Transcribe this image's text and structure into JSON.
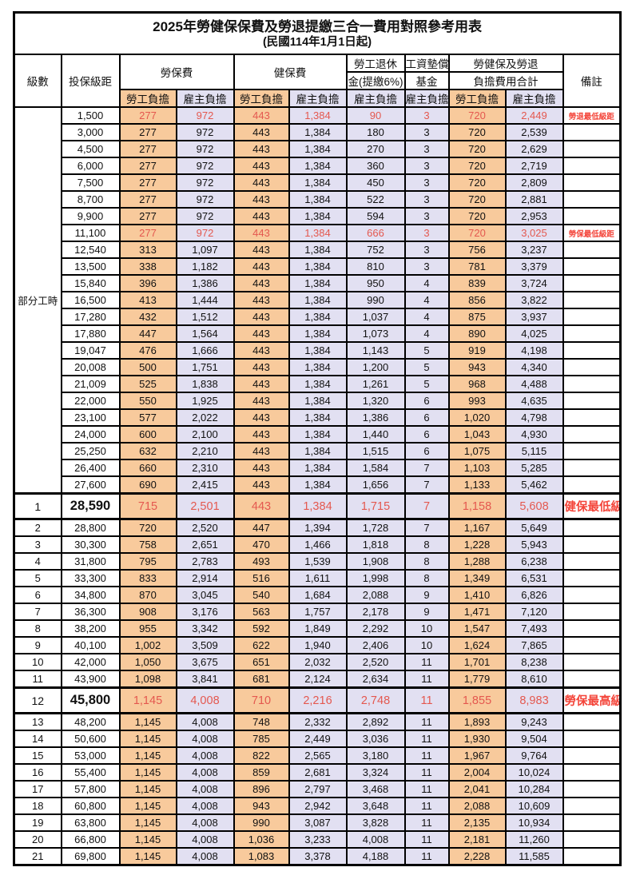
{
  "title": "2025年勞健保保費及勞退提繳三合一費用對照參考用表",
  "subtitle": "(民國114年1月1日起)",
  "header": {
    "level": "級數",
    "bracket": "投保級距",
    "labor_fee": "勞保費",
    "health_fee": "健保費",
    "pension_line1": "勞工退休",
    "pension_line2": "金(提繳6%)",
    "wage_fund_line1": "工資墊償",
    "wage_fund_line2": "基金",
    "total_line1": "勞健保及勞退",
    "total_line2": "負擔費用合計",
    "remark": "備註",
    "employee_share": "勞工負擔",
    "employer_share": "雇主負擔"
  },
  "part_time_label": "部分工時",
  "part_time_span": 23,
  "colors": {
    "employee_bg": "#F8CA9C",
    "employer_bg": "#E2E0F2",
    "highlight_red": "#E4584F",
    "note_red": "#F4453A"
  },
  "rows": [
    {
      "level": "",
      "bracket": "1,500",
      "values": [
        "277",
        "972",
        "443",
        "1,384",
        "90",
        "3",
        "720",
        "2,449"
      ],
      "note": "勞退最低級距",
      "highlight": true,
      "big": false
    },
    {
      "level": "",
      "bracket": "3,000",
      "values": [
        "277",
        "972",
        "443",
        "1,384",
        "180",
        "3",
        "720",
        "2,539"
      ],
      "note": "",
      "highlight": false,
      "big": false
    },
    {
      "level": "",
      "bracket": "4,500",
      "values": [
        "277",
        "972",
        "443",
        "1,384",
        "270",
        "3",
        "720",
        "2,629"
      ],
      "note": "",
      "highlight": false,
      "big": false
    },
    {
      "level": "",
      "bracket": "6,000",
      "values": [
        "277",
        "972",
        "443",
        "1,384",
        "360",
        "3",
        "720",
        "2,719"
      ],
      "note": "",
      "highlight": false,
      "big": false
    },
    {
      "level": "",
      "bracket": "7,500",
      "values": [
        "277",
        "972",
        "443",
        "1,384",
        "450",
        "3",
        "720",
        "2,809"
      ],
      "note": "",
      "highlight": false,
      "big": false
    },
    {
      "level": "",
      "bracket": "8,700",
      "values": [
        "277",
        "972",
        "443",
        "1,384",
        "522",
        "3",
        "720",
        "2,881"
      ],
      "note": "",
      "highlight": false,
      "big": false
    },
    {
      "level": "",
      "bracket": "9,900",
      "values": [
        "277",
        "972",
        "443",
        "1,384",
        "594",
        "3",
        "720",
        "2,953"
      ],
      "note": "",
      "highlight": false,
      "big": false
    },
    {
      "level": "",
      "bracket": "11,100",
      "values": [
        "277",
        "972",
        "443",
        "1,384",
        "666",
        "3",
        "720",
        "3,025"
      ],
      "note": "勞保最低級距",
      "highlight": true,
      "big": false
    },
    {
      "level": "",
      "bracket": "12,540",
      "values": [
        "313",
        "1,097",
        "443",
        "1,384",
        "752",
        "3",
        "756",
        "3,237"
      ],
      "note": "",
      "highlight": false,
      "big": false
    },
    {
      "level": "",
      "bracket": "13,500",
      "values": [
        "338",
        "1,182",
        "443",
        "1,384",
        "810",
        "3",
        "781",
        "3,379"
      ],
      "note": "",
      "highlight": false,
      "big": false
    },
    {
      "level": "",
      "bracket": "15,840",
      "values": [
        "396",
        "1,386",
        "443",
        "1,384",
        "950",
        "4",
        "839",
        "3,724"
      ],
      "note": "",
      "highlight": false,
      "big": false
    },
    {
      "level": "",
      "bracket": "16,500",
      "values": [
        "413",
        "1,444",
        "443",
        "1,384",
        "990",
        "4",
        "856",
        "3,822"
      ],
      "note": "",
      "highlight": false,
      "big": false
    },
    {
      "level": "",
      "bracket": "17,280",
      "values": [
        "432",
        "1,512",
        "443",
        "1,384",
        "1,037",
        "4",
        "875",
        "3,937"
      ],
      "note": "",
      "highlight": false,
      "big": false
    },
    {
      "level": "",
      "bracket": "17,880",
      "values": [
        "447",
        "1,564",
        "443",
        "1,384",
        "1,073",
        "4",
        "890",
        "4,025"
      ],
      "note": "",
      "highlight": false,
      "big": false
    },
    {
      "level": "",
      "bracket": "19,047",
      "values": [
        "476",
        "1,666",
        "443",
        "1,384",
        "1,143",
        "5",
        "919",
        "4,198"
      ],
      "note": "",
      "highlight": false,
      "big": false
    },
    {
      "level": "",
      "bracket": "20,008",
      "values": [
        "500",
        "1,751",
        "443",
        "1,384",
        "1,200",
        "5",
        "943",
        "4,340"
      ],
      "note": "",
      "highlight": false,
      "big": false
    },
    {
      "level": "",
      "bracket": "21,009",
      "values": [
        "525",
        "1,838",
        "443",
        "1,384",
        "1,261",
        "5",
        "968",
        "4,488"
      ],
      "note": "",
      "highlight": false,
      "big": false
    },
    {
      "level": "",
      "bracket": "22,000",
      "values": [
        "550",
        "1,925",
        "443",
        "1,384",
        "1,320",
        "6",
        "993",
        "4,635"
      ],
      "note": "",
      "highlight": false,
      "big": false
    },
    {
      "level": "",
      "bracket": "23,100",
      "values": [
        "577",
        "2,022",
        "443",
        "1,384",
        "1,386",
        "6",
        "1,020",
        "4,798"
      ],
      "note": "",
      "highlight": false,
      "big": false
    },
    {
      "level": "",
      "bracket": "24,000",
      "values": [
        "600",
        "2,100",
        "443",
        "1,384",
        "1,440",
        "6",
        "1,043",
        "4,930"
      ],
      "note": "",
      "highlight": false,
      "big": false
    },
    {
      "level": "",
      "bracket": "25,250",
      "values": [
        "632",
        "2,210",
        "443",
        "1,384",
        "1,515",
        "6",
        "1,075",
        "5,115"
      ],
      "note": "",
      "highlight": false,
      "big": false
    },
    {
      "level": "",
      "bracket": "26,400",
      "values": [
        "660",
        "2,310",
        "443",
        "1,384",
        "1,584",
        "7",
        "1,103",
        "5,285"
      ],
      "note": "",
      "highlight": false,
      "big": false
    },
    {
      "level": "",
      "bracket": "27,600",
      "values": [
        "690",
        "2,415",
        "443",
        "1,384",
        "1,656",
        "7",
        "1,133",
        "5,462"
      ],
      "note": "",
      "highlight": false,
      "big": false
    },
    {
      "level": "1",
      "bracket": "28,590",
      "values": [
        "715",
        "2,501",
        "443",
        "1,384",
        "1,715",
        "7",
        "1,158",
        "5,608"
      ],
      "note": "健保最低級距",
      "highlight": true,
      "big": true
    },
    {
      "level": "2",
      "bracket": "28,800",
      "values": [
        "720",
        "2,520",
        "447",
        "1,394",
        "1,728",
        "7",
        "1,167",
        "5,649"
      ],
      "note": "",
      "highlight": false,
      "big": false
    },
    {
      "level": "3",
      "bracket": "30,300",
      "values": [
        "758",
        "2,651",
        "470",
        "1,466",
        "1,818",
        "8",
        "1,228",
        "5,943"
      ],
      "note": "",
      "highlight": false,
      "big": false
    },
    {
      "level": "4",
      "bracket": "31,800",
      "values": [
        "795",
        "2,783",
        "493",
        "1,539",
        "1,908",
        "8",
        "1,288",
        "6,238"
      ],
      "note": "",
      "highlight": false,
      "big": false
    },
    {
      "level": "5",
      "bracket": "33,300",
      "values": [
        "833",
        "2,914",
        "516",
        "1,611",
        "1,998",
        "8",
        "1,349",
        "6,531"
      ],
      "note": "",
      "highlight": false,
      "big": false
    },
    {
      "level": "6",
      "bracket": "34,800",
      "values": [
        "870",
        "3,045",
        "540",
        "1,684",
        "2,088",
        "9",
        "1,410",
        "6,826"
      ],
      "note": "",
      "highlight": false,
      "big": false
    },
    {
      "level": "7",
      "bracket": "36,300",
      "values": [
        "908",
        "3,176",
        "563",
        "1,757",
        "2,178",
        "9",
        "1,471",
        "7,120"
      ],
      "note": "",
      "highlight": false,
      "big": false
    },
    {
      "level": "8",
      "bracket": "38,200",
      "values": [
        "955",
        "3,342",
        "592",
        "1,849",
        "2,292",
        "10",
        "1,547",
        "7,493"
      ],
      "note": "",
      "highlight": false,
      "big": false
    },
    {
      "level": "9",
      "bracket": "40,100",
      "values": [
        "1,002",
        "3,509",
        "622",
        "1,940",
        "2,406",
        "10",
        "1,624",
        "7,865"
      ],
      "note": "",
      "highlight": false,
      "big": false
    },
    {
      "level": "10",
      "bracket": "42,000",
      "values": [
        "1,050",
        "3,675",
        "651",
        "2,032",
        "2,520",
        "11",
        "1,701",
        "8,238"
      ],
      "note": "",
      "highlight": false,
      "big": false
    },
    {
      "level": "11",
      "bracket": "43,900",
      "values": [
        "1,098",
        "3,841",
        "681",
        "2,124",
        "2,634",
        "11",
        "1,779",
        "8,610"
      ],
      "note": "",
      "highlight": false,
      "big": false
    },
    {
      "level": "12",
      "bracket": "45,800",
      "values": [
        "1,145",
        "4,008",
        "710",
        "2,216",
        "2,748",
        "11",
        "1,855",
        "8,983"
      ],
      "note": "勞保最高級距",
      "highlight": true,
      "big": true
    },
    {
      "level": "13",
      "bracket": "48,200",
      "values": [
        "1,145",
        "4,008",
        "748",
        "2,332",
        "2,892",
        "11",
        "1,893",
        "9,243"
      ],
      "note": "",
      "highlight": false,
      "big": false
    },
    {
      "level": "14",
      "bracket": "50,600",
      "values": [
        "1,145",
        "4,008",
        "785",
        "2,449",
        "3,036",
        "11",
        "1,930",
        "9,504"
      ],
      "note": "",
      "highlight": false,
      "big": false
    },
    {
      "level": "15",
      "bracket": "53,000",
      "values": [
        "1,145",
        "4,008",
        "822",
        "2,565",
        "3,180",
        "11",
        "1,967",
        "9,764"
      ],
      "note": "",
      "highlight": false,
      "big": false
    },
    {
      "level": "16",
      "bracket": "55,400",
      "values": [
        "1,145",
        "4,008",
        "859",
        "2,681",
        "3,324",
        "11",
        "2,004",
        "10,024"
      ],
      "note": "",
      "highlight": false,
      "big": false
    },
    {
      "level": "17",
      "bracket": "57,800",
      "values": [
        "1,145",
        "4,008",
        "896",
        "2,797",
        "3,468",
        "11",
        "2,041",
        "10,284"
      ],
      "note": "",
      "highlight": false,
      "big": false
    },
    {
      "level": "18",
      "bracket": "60,800",
      "values": [
        "1,145",
        "4,008",
        "943",
        "2,942",
        "3,648",
        "11",
        "2,088",
        "10,609"
      ],
      "note": "",
      "highlight": false,
      "big": false
    },
    {
      "level": "19",
      "bracket": "63,800",
      "values": [
        "1,145",
        "4,008",
        "990",
        "3,087",
        "3,828",
        "11",
        "2,135",
        "10,934"
      ],
      "note": "",
      "highlight": false,
      "big": false
    },
    {
      "level": "20",
      "bracket": "66,800",
      "values": [
        "1,145",
        "4,008",
        "1,036",
        "3,233",
        "4,008",
        "11",
        "2,181",
        "11,260"
      ],
      "note": "",
      "highlight": false,
      "big": false
    },
    {
      "level": "21",
      "bracket": "69,800",
      "values": [
        "1,145",
        "4,008",
        "1,083",
        "3,378",
        "4,188",
        "11",
        "2,228",
        "11,585"
      ],
      "note": "",
      "highlight": false,
      "big": false
    }
  ]
}
